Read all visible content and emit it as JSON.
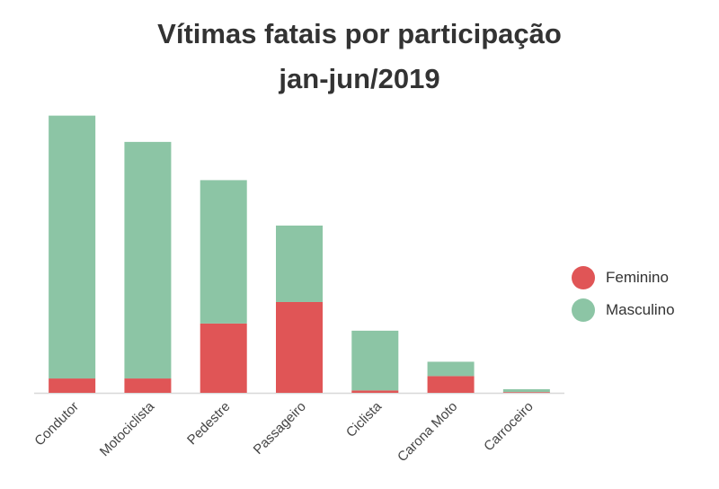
{
  "chart_data": {
    "type": "bar",
    "stacked": true,
    "title": "Vítimas fatais por participação",
    "subtitle": "jan-jun/2019",
    "categories": [
      "Condutor",
      "Motociclista",
      "Pedestre",
      "Passageiro",
      "Ciclista",
      "Carona Moto",
      "Carroceiro"
    ],
    "series": [
      {
        "name": "Feminino",
        "color": "#e05556",
        "values": [
          6,
          6,
          29,
          38,
          1,
          7,
          0.3
        ]
      },
      {
        "name": "Masculino",
        "color": "#8cc5a5",
        "values": [
          110,
          99,
          60,
          32,
          25,
          6,
          1.2
        ]
      }
    ],
    "ylim": [
      0,
      120
    ],
    "legend_position": "right",
    "grid": false
  }
}
